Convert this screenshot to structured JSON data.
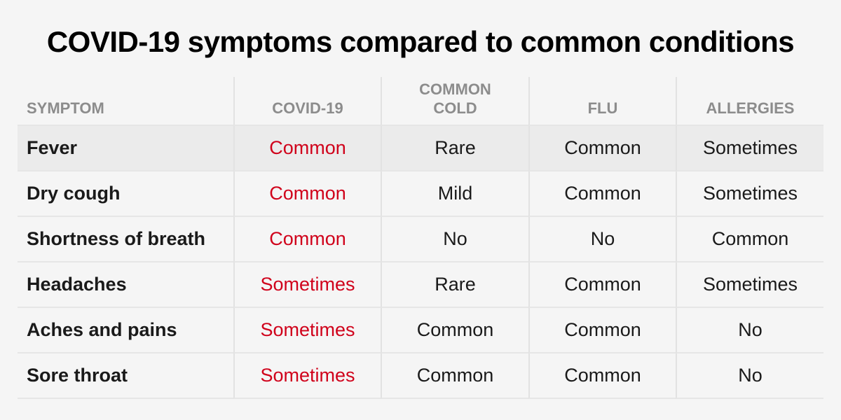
{
  "header": {
    "title": "COVID-19 symptoms compared to common conditions"
  },
  "table": {
    "columns": [
      "SYMPTOM",
      "COVID-19",
      "COMMON COLD",
      "FLU",
      "ALLERGIES"
    ],
    "rows": [
      [
        "Fever",
        "Common",
        "Rare",
        "Common",
        "Sometimes"
      ],
      [
        "Dry cough",
        "Common",
        "Mild",
        "Common",
        "Sometimes"
      ],
      [
        "Shortness of breath",
        "Common",
        "No",
        "No",
        "Common"
      ],
      [
        "Headaches",
        "Sometimes",
        "Rare",
        "Common",
        "Sometimes"
      ],
      [
        "Aches and pains",
        "Sometimes",
        "Common",
        "Common",
        "No"
      ],
      [
        "Sore throat",
        "Sometimes",
        "Common",
        "Common",
        "No"
      ]
    ]
  }
}
